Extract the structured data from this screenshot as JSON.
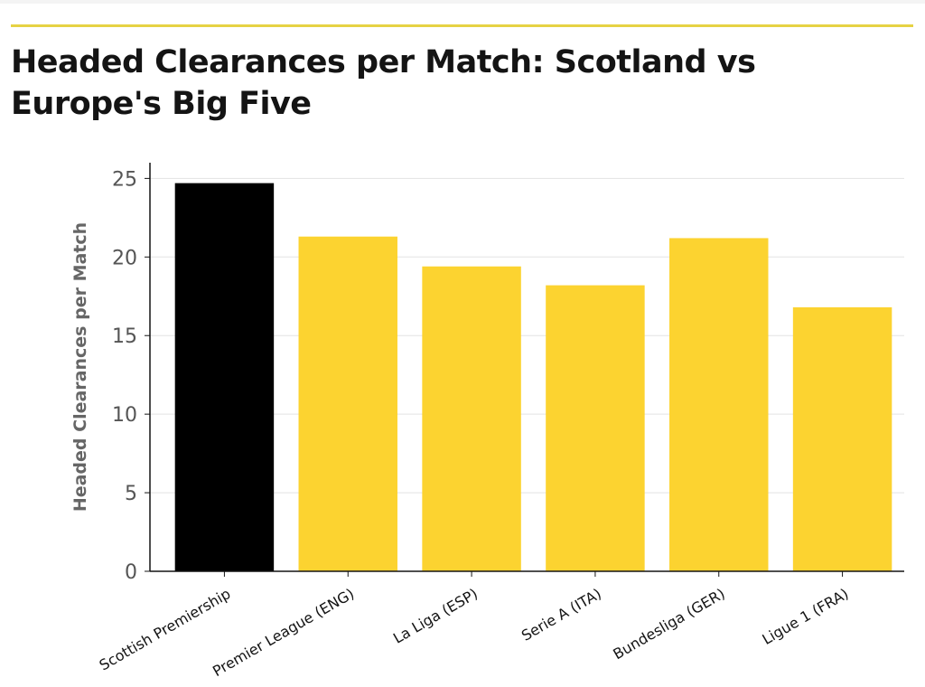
{
  "page": {
    "title": "Headed Clearances per Match: Scotland vs Europe's Big Five",
    "accent_color": "#e6d244"
  },
  "chart_data": {
    "type": "bar",
    "title": "Headed Clearances per Match: Scotland vs Europe's Big Five",
    "xlabel": "",
    "ylabel": "Headed Clearances per Match",
    "categories": [
      "Scottish Premiership",
      "Premier League (ENG)",
      "La Liga (ESP)",
      "Serie A (ITA)",
      "Bundesliga (GER)",
      "Ligue 1 (FRA)"
    ],
    "values": [
      24.7,
      21.3,
      19.4,
      18.2,
      21.2,
      16.8
    ],
    "bar_colors": [
      "#000000",
      "#fcd330",
      "#fcd330",
      "#fcd330",
      "#fcd330",
      "#fcd330"
    ],
    "ylim": [
      0,
      26
    ],
    "yticks": [
      0,
      5,
      10,
      15,
      20,
      25
    ],
    "grid": "horizontal",
    "legend": "none",
    "gridline_color": "#e3e3e3",
    "axis_color": "#141414"
  }
}
